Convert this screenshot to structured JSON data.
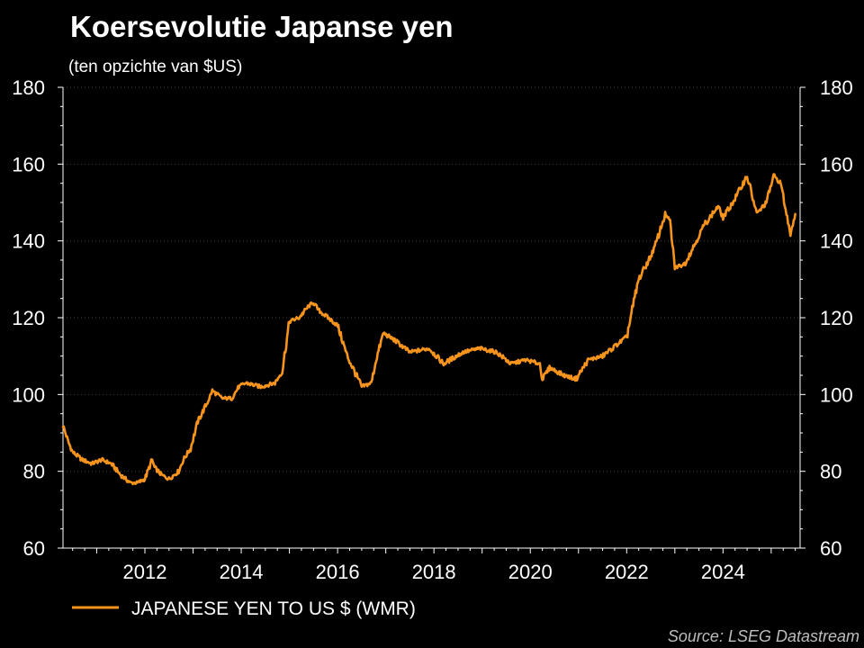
{
  "chart_data": {
    "type": "line",
    "title": "Koersevolutie Japanse yen",
    "subtitle": "(ten opzichte van $US)",
    "source": "Source: LSEG Datastream",
    "xlabel": "",
    "ylabel": "",
    "xlim": [
      2010.3,
      2025.6
    ],
    "ylim": [
      60,
      180
    ],
    "x_ticks": [
      2012,
      2014,
      2016,
      2018,
      2020,
      2022,
      2024
    ],
    "y_ticks": [
      60,
      80,
      100,
      120,
      140,
      160,
      180
    ],
    "grid": false,
    "legend_position": "bottom-left",
    "colors": {
      "background": "#000000",
      "text": "#ffffff",
      "axis": "#ffffff",
      "gridline": "#3a3a3a",
      "line": "#f7941d",
      "source": "#bdbdbd"
    },
    "series": [
      {
        "name": "JAPANESE YEN TO US $ (WMR)",
        "x": [
          2010.3,
          2010.4,
          2010.5,
          2010.7,
          2010.9,
          2011.1,
          2011.3,
          2011.5,
          2011.7,
          2011.85,
          2012.0,
          2012.15,
          2012.2,
          2012.35,
          2012.5,
          2012.7,
          2012.8,
          2012.95,
          2013.1,
          2013.3,
          2013.4,
          2013.6,
          2013.8,
          2013.95,
          2014.1,
          2014.4,
          2014.7,
          2014.85,
          2015.0,
          2015.2,
          2015.4,
          2015.5,
          2015.6,
          2015.8,
          2016.0,
          2016.2,
          2016.5,
          2016.7,
          2016.8,
          2016.95,
          2017.2,
          2017.5,
          2017.9,
          2018.2,
          2018.6,
          2018.95,
          2019.3,
          2019.6,
          2019.9,
          2020.2,
          2020.25,
          2020.4,
          2020.7,
          2020.95,
          2021.2,
          2021.5,
          2021.8,
          2022.0,
          2022.25,
          2022.5,
          2022.6,
          2022.8,
          2022.9,
          2023.0,
          2023.2,
          2023.45,
          2023.6,
          2023.9,
          2024.0,
          2024.25,
          2024.5,
          2024.7,
          2024.9,
          2025.05,
          2025.2,
          2025.3,
          2025.4,
          2025.5
        ],
        "values": [
          92,
          88,
          85,
          83,
          82,
          83,
          82,
          79,
          77,
          77,
          78,
          83,
          81,
          79,
          78,
          80,
          83,
          86,
          93,
          98,
          101,
          99,
          99,
          102,
          103,
          102,
          103,
          106,
          119,
          120,
          123,
          124,
          122,
          120,
          118,
          110,
          102,
          103,
          109,
          116,
          114,
          111,
          112,
          108,
          111,
          112,
          111,
          108,
          109,
          108,
          104,
          107,
          105,
          104,
          109,
          110,
          113,
          115,
          130,
          136,
          139,
          147,
          145,
          133,
          134,
          140,
          144,
          149,
          146,
          151,
          157,
          147,
          150,
          157,
          155,
          148,
          142,
          147
        ]
      }
    ]
  }
}
